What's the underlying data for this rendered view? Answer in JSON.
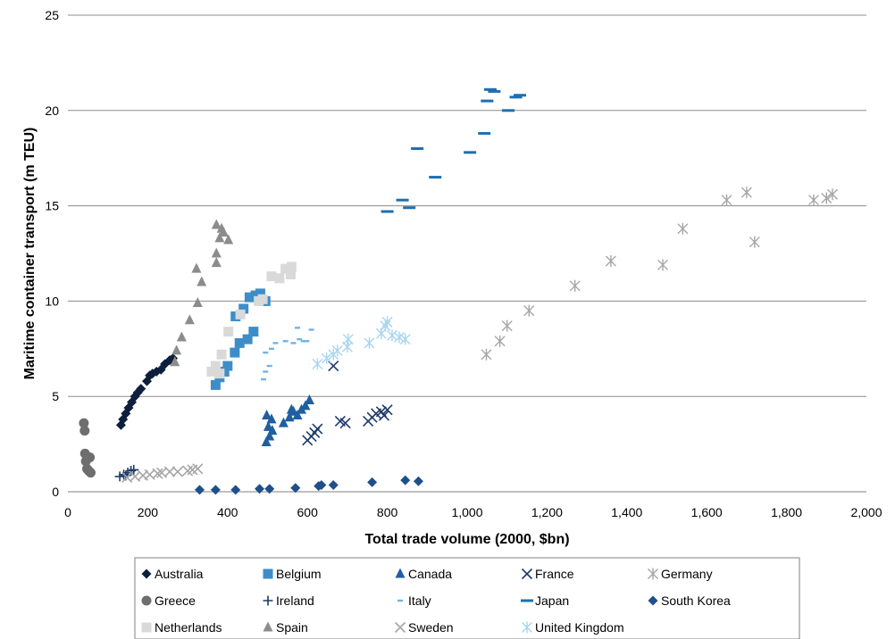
{
  "chart_data": {
    "type": "scatter",
    "xlabel": "Total trade volume (2000, $bn)",
    "ylabel": "Maritime container transport (m TEU)",
    "xlim": [
      0,
      2000
    ],
    "ylim": [
      0,
      25
    ],
    "x_ticks": [
      0,
      200,
      400,
      600,
      800,
      1000,
      1200,
      1400,
      1600,
      1800,
      2000
    ],
    "x_tick_labels": [
      "0",
      "200",
      "400",
      "600",
      "800",
      "1,000",
      "1,200",
      "1,400",
      "1,600",
      "1,800",
      "2,000"
    ],
    "y_ticks": [
      0,
      5,
      10,
      15,
      20,
      25
    ],
    "y_tick_labels": [
      "0",
      "5",
      "10",
      "15",
      "20",
      "25"
    ],
    "grid": "horizontal",
    "legend_position": "bottom",
    "series": [
      {
        "name": "Australia",
        "marker": "diamond",
        "color": "#0d1f3c",
        "points": [
          [
            133,
            3.5
          ],
          [
            138,
            3.8
          ],
          [
            145,
            4.1
          ],
          [
            152,
            4.4
          ],
          [
            160,
            4.7
          ],
          [
            168,
            5.0
          ],
          [
            175,
            5.2
          ],
          [
            183,
            5.4
          ],
          [
            198,
            5.8
          ],
          [
            205,
            6.1
          ],
          [
            212,
            6.2
          ],
          [
            222,
            6.3
          ],
          [
            233,
            6.4
          ],
          [
            243,
            6.7
          ],
          [
            255,
            6.9
          ],
          [
            263,
            7.0
          ]
        ]
      },
      {
        "name": "Belgium",
        "marker": "square",
        "color": "#3d8ec8",
        "points": [
          [
            370,
            5.6
          ],
          [
            380,
            6.0
          ],
          [
            392,
            6.3
          ],
          [
            400,
            6.6
          ],
          [
            418,
            7.3
          ],
          [
            430,
            7.8
          ],
          [
            450,
            8.0
          ],
          [
            465,
            8.4
          ],
          [
            420,
            9.2
          ],
          [
            440,
            9.6
          ],
          [
            455,
            10.2
          ],
          [
            470,
            10.3
          ],
          [
            482,
            10.4
          ],
          [
            495,
            10.0
          ]
        ]
      },
      {
        "name": "Canada",
        "marker": "triangle",
        "color": "#1f5fa0",
        "points": [
          [
            497,
            2.6
          ],
          [
            505,
            2.9
          ],
          [
            512,
            3.2
          ],
          [
            502,
            3.4
          ],
          [
            510,
            3.8
          ],
          [
            498,
            4.0
          ],
          [
            540,
            3.6
          ],
          [
            555,
            3.9
          ],
          [
            560,
            4.3
          ],
          [
            575,
            4.0
          ],
          [
            585,
            4.3
          ],
          [
            595,
            4.5
          ],
          [
            605,
            4.8
          ],
          [
            565,
            4.2
          ]
        ]
      },
      {
        "name": "France",
        "marker": "x",
        "color": "#1f3b6a",
        "points": [
          [
            600,
            2.7
          ],
          [
            610,
            2.9
          ],
          [
            618,
            3.1
          ],
          [
            625,
            3.3
          ],
          [
            682,
            3.7
          ],
          [
            695,
            3.6
          ],
          [
            752,
            3.7
          ],
          [
            762,
            3.9
          ],
          [
            772,
            4.1
          ],
          [
            785,
            4.2
          ],
          [
            792,
            4.0
          ],
          [
            800,
            4.3
          ],
          [
            665,
            6.6
          ]
        ]
      },
      {
        "name": "Germany",
        "marker": "star",
        "color": "#a6a6a6",
        "points": [
          [
            1048,
            7.2
          ],
          [
            1082,
            7.9
          ],
          [
            1100,
            8.7
          ],
          [
            1155,
            9.5
          ],
          [
            1270,
            10.8
          ],
          [
            1360,
            12.1
          ],
          [
            1490,
            11.9
          ],
          [
            1540,
            13.8
          ],
          [
            1650,
            15.3
          ],
          [
            1700,
            15.7
          ],
          [
            1720,
            13.1
          ],
          [
            1868,
            15.3
          ],
          [
            1900,
            15.4
          ],
          [
            1915,
            15.6
          ]
        ]
      },
      {
        "name": "Greece",
        "marker": "circle",
        "color": "#6e6e6e",
        "points": [
          [
            40,
            3.6
          ],
          [
            42,
            3.2
          ],
          [
            43,
            2.0
          ],
          [
            45,
            1.6
          ],
          [
            48,
            1.2
          ],
          [
            52,
            1.1
          ],
          [
            55,
            1.8
          ],
          [
            57,
            1.0
          ]
        ]
      },
      {
        "name": "Ireland",
        "marker": "plus",
        "color": "#1f3b6a",
        "points": [
          [
            130,
            0.8
          ],
          [
            140,
            0.9
          ],
          [
            150,
            1.0
          ],
          [
            158,
            1.1
          ],
          [
            165,
            1.15
          ],
          [
            145,
            0.85
          ]
        ]
      },
      {
        "name": "Italy",
        "marker": "dash",
        "color": "#6fb4e8",
        "points": [
          [
            490,
            5.9
          ],
          [
            495,
            6.3
          ],
          [
            505,
            6.6
          ],
          [
            495,
            7.3
          ],
          [
            510,
            7.5
          ],
          [
            520,
            7.8
          ],
          [
            545,
            7.9
          ],
          [
            565,
            7.8
          ],
          [
            580,
            8.0
          ],
          [
            590,
            7.9
          ],
          [
            598,
            7.9
          ],
          [
            575,
            8.6
          ],
          [
            610,
            8.5
          ]
        ]
      },
      {
        "name": "Japan",
        "marker": "bar",
        "color": "#1f6fb0",
        "points": [
          [
            800,
            14.7
          ],
          [
            855,
            14.9
          ],
          [
            838,
            15.3
          ],
          [
            875,
            18.0
          ],
          [
            920,
            16.5
          ],
          [
            1007,
            17.8
          ],
          [
            1043,
            18.8
          ],
          [
            1050,
            20.5
          ],
          [
            1058,
            21.1
          ],
          [
            1068,
            21.0
          ],
          [
            1103,
            20.0
          ],
          [
            1122,
            20.7
          ],
          [
            1132,
            20.8
          ]
        ]
      },
      {
        "name": "South Korea",
        "marker": "diamond",
        "color": "#1f4f8a",
        "points": [
          [
            330,
            0.1
          ],
          [
            370,
            0.1
          ],
          [
            420,
            0.1
          ],
          [
            480,
            0.15
          ],
          [
            505,
            0.15
          ],
          [
            570,
            0.2
          ],
          [
            628,
            0.3
          ],
          [
            665,
            0.35
          ],
          [
            762,
            0.5
          ],
          [
            845,
            0.6
          ],
          [
            878,
            0.55
          ],
          [
            635,
            0.35
          ]
        ]
      },
      {
        "name": "Netherlands",
        "marker": "square",
        "color": "#d9d9d9",
        "points": [
          [
            360,
            6.3
          ],
          [
            370,
            6.6
          ],
          [
            385,
            7.2
          ],
          [
            402,
            8.4
          ],
          [
            432,
            9.3
          ],
          [
            478,
            10.0
          ],
          [
            488,
            10.1
          ],
          [
            510,
            11.3
          ],
          [
            530,
            11.2
          ],
          [
            545,
            11.7
          ],
          [
            558,
            11.4
          ],
          [
            560,
            11.8
          ],
          [
            380,
            6.2
          ]
        ]
      },
      {
        "name": "Spain",
        "marker": "triangle",
        "color": "#8c8c8c",
        "points": [
          [
            268,
            6.8
          ],
          [
            272,
            7.4
          ],
          [
            285,
            8.1
          ],
          [
            305,
            9.0
          ],
          [
            325,
            9.9
          ],
          [
            335,
            11.0
          ],
          [
            322,
            11.7
          ],
          [
            372,
            12.0
          ],
          [
            372,
            12.5
          ],
          [
            380,
            13.3
          ],
          [
            390,
            13.6
          ],
          [
            402,
            13.2
          ],
          [
            372,
            14.0
          ],
          [
            385,
            13.8
          ]
        ]
      },
      {
        "name": "Sweden",
        "marker": "x",
        "color": "#a6a6a6",
        "points": [
          [
            148,
            0.75
          ],
          [
            168,
            0.8
          ],
          [
            188,
            0.85
          ],
          [
            205,
            0.9
          ],
          [
            225,
            0.95
          ],
          [
            235,
            1.0
          ],
          [
            255,
            1.05
          ],
          [
            275,
            1.05
          ],
          [
            300,
            1.1
          ],
          [
            312,
            1.15
          ],
          [
            325,
            1.2
          ]
        ]
      },
      {
        "name": "United Kingdom",
        "marker": "star",
        "color": "#a8d5f2",
        "points": [
          [
            625,
            6.7
          ],
          [
            648,
            7.0
          ],
          [
            665,
            7.2
          ],
          [
            675,
            7.4
          ],
          [
            700,
            7.6
          ],
          [
            702,
            8.0
          ],
          [
            755,
            7.8
          ],
          [
            785,
            8.3
          ],
          [
            795,
            8.7
          ],
          [
            800,
            8.9
          ],
          [
            812,
            8.2
          ],
          [
            830,
            8.1
          ],
          [
            845,
            8.0
          ]
        ]
      }
    ]
  }
}
